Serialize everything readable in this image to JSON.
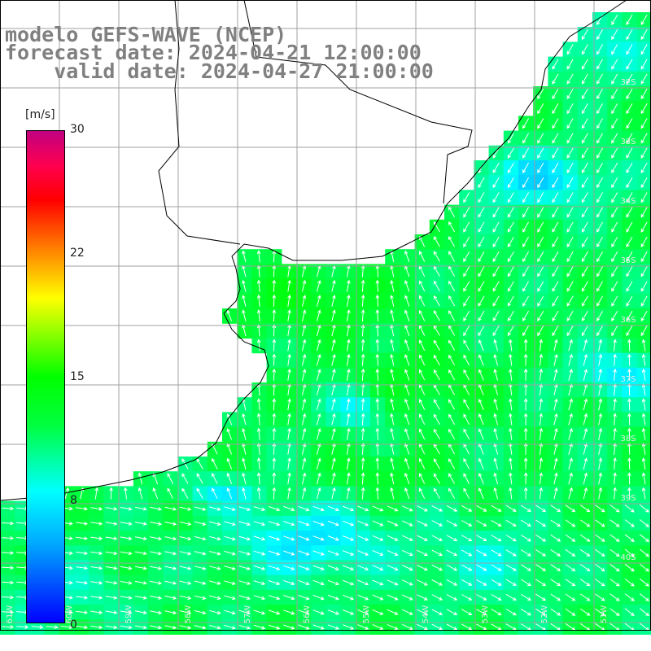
{
  "title": {
    "line1": "modelo GEFS-WAVE (NCEP)",
    "line2": "forecast date: 2024-04-21 12:00:00",
    "line3": "    valid date: 2024-04-27 21:00:00"
  },
  "colorbar": {
    "unit": "[m/s]",
    "ticks": [
      "30",
      "22",
      "15",
      "8",
      "0"
    ],
    "range": [
      0,
      30
    ]
  },
  "map": {
    "lat_labels": [
      "32S",
      "33S",
      "34S",
      "35S",
      "36S",
      "37S",
      "38S",
      "39S",
      "40S"
    ],
    "lon_labels": [
      "61W",
      "60W",
      "59W",
      "58W",
      "57W",
      "56W",
      "55W",
      "54W",
      "53W",
      "52W",
      "51W"
    ],
    "land_color": "#ffffff",
    "grid_color": "#a0a0a0",
    "arrow_color": "#ffffff"
  }
}
